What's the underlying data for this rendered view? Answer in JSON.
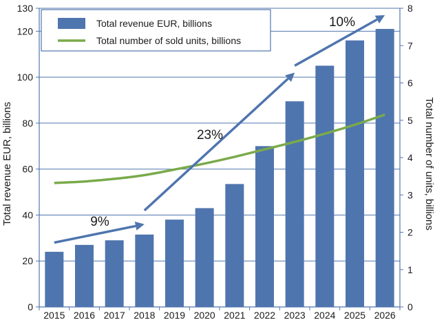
{
  "chart_data": {
    "type": "bar",
    "categories": [
      "2015",
      "2016",
      "2017",
      "2018",
      "2019",
      "2020",
      "2021",
      "2022",
      "2023",
      "2024",
      "2025",
      "2026"
    ],
    "series": [
      {
        "name": "Total revenue EUR, billions",
        "kind": "bar",
        "axis": "left",
        "color": "#4f75ae",
        "values": [
          24,
          27,
          29,
          31.5,
          38,
          43,
          53.5,
          70,
          89.5,
          105,
          116,
          121
        ]
      },
      {
        "name": "Total number of sold units, billions",
        "kind": "line",
        "axis": "right",
        "color": "#7aaa4a",
        "values": [
          3.32,
          3.36,
          3.43,
          3.53,
          3.68,
          3.84,
          4.02,
          4.22,
          4.42,
          4.64,
          4.88,
          5.15
        ]
      }
    ],
    "ylabel": "Total revenue EUR, billions",
    "y2label": "Total number of units, billions",
    "ylim": [
      0,
      130
    ],
    "yticks": [
      0,
      20,
      40,
      60,
      80,
      100,
      120,
      130
    ],
    "y2lim": [
      0,
      8
    ],
    "y2ticks": [
      0,
      1,
      2,
      3,
      4,
      5,
      6,
      7,
      8
    ],
    "grid": true,
    "legend_position": "top-left",
    "annotations": [
      {
        "text": "9%",
        "arrow_from": {
          "x": "2015",
          "y": 28
        },
        "arrow_to": {
          "x": "2018",
          "y": 36
        }
      },
      {
        "text": "23%",
        "arrow_from": {
          "x": "2018",
          "y": 42
        },
        "arrow_to": {
          "x": "2023",
          "y": 102
        }
      },
      {
        "text": "10%",
        "arrow_from": {
          "x": "2023",
          "y": 105
        },
        "arrow_to": {
          "x": "2026",
          "y": 127
        }
      }
    ],
    "arrow_color": "#4f75ae"
  }
}
